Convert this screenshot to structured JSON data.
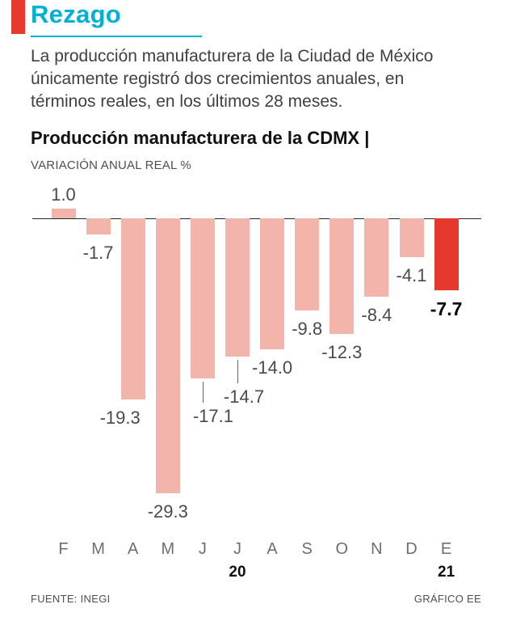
{
  "header": {
    "title": "Rezago",
    "accent_color": "#e8392e",
    "title_color": "#00b1d4"
  },
  "intro": {
    "lines": [
      "La producción manufacturera de la Ciudad de México",
      "únicamente registró dos crecimientos anuales, en",
      "términos reales, en los últimos 28 meses."
    ]
  },
  "chart_data": {
    "type": "bar",
    "title": "Producción manufacturera de la CDMX |",
    "subtitle": "VARIACIÓN ANUAL REAL %",
    "categories": [
      "F",
      "M",
      "A",
      "M",
      "J",
      "J",
      "A",
      "S",
      "O",
      "N",
      "D",
      "E"
    ],
    "values": [
      1.0,
      -1.7,
      -19.3,
      -29.3,
      -17.1,
      -14.7,
      -14.0,
      -9.8,
      -12.3,
      -8.4,
      -4.1,
      -7.7
    ],
    "value_labels": [
      "1.0",
      "-1.7",
      "-19.3",
      "-29.3",
      "-17.1",
      "-14.7",
      "-14.0",
      "-9.8",
      "-12.3",
      "-8.4",
      "-4.1",
      "-7.7"
    ],
    "highlight_index": 11,
    "bar_color": "#f3b4ab",
    "highlight_color": "#e6382c",
    "year_labels": [
      {
        "text": "20",
        "span": [
          0,
          10
        ]
      },
      {
        "text": "21",
        "span": [
          11,
          11
        ]
      }
    ],
    "ylim": [
      -30,
      2
    ],
    "unit": "%",
    "grid": false,
    "legend": false
  },
  "footer": {
    "source": "FUENTE: INEGI",
    "credit": "GRÁFICO EE"
  }
}
